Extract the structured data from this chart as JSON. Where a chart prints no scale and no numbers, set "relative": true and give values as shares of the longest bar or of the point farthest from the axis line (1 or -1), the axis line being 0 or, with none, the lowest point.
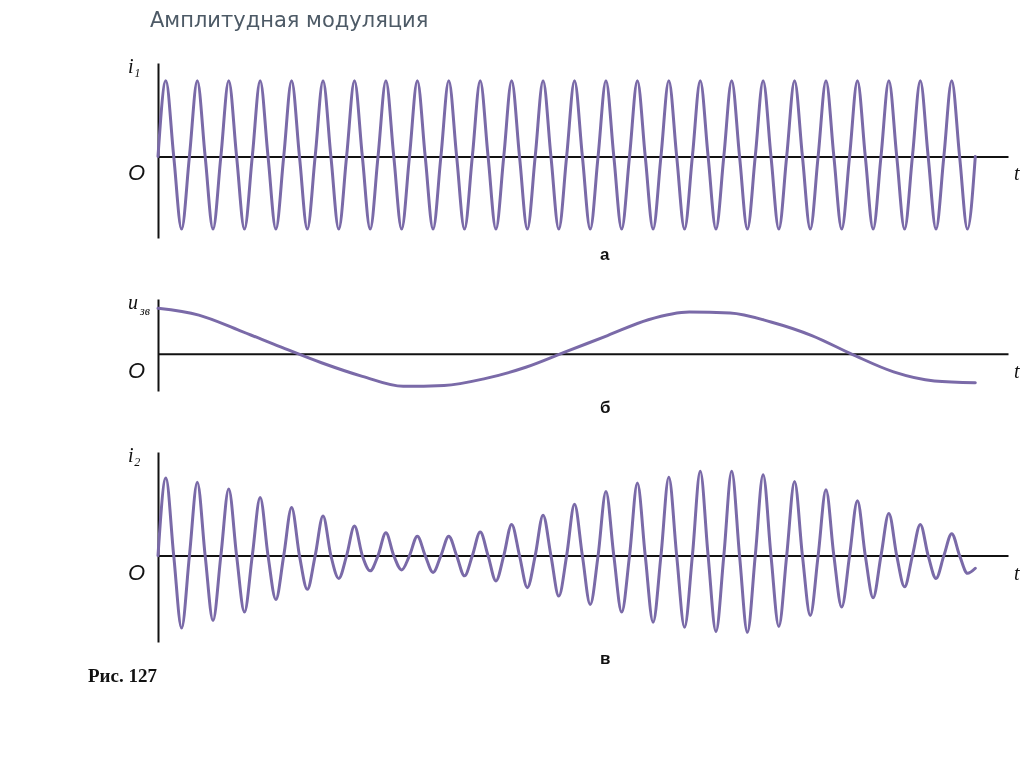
{
  "chart_data": [
    {
      "type": "line",
      "title": "Амплитудная модуляция",
      "relative": true,
      "ylabel": "i₁",
      "xlabel": "t",
      "annotations": [
        "O",
        "а"
      ],
      "categories": [
        null,
        null,
        null,
        null,
        null,
        null,
        null,
        null,
        null,
        null,
        null,
        null,
        null,
        null,
        null,
        null,
        null,
        null,
        null,
        null,
        null,
        null,
        null,
        null,
        null,
        null,
        null,
        null,
        null,
        null,
        null,
        null,
        null,
        null,
        null,
        null,
        null,
        null,
        null,
        null,
        null,
        null,
        null,
        null,
        null,
        null,
        null,
        null,
        null,
        null,
        null,
        null,
        null,
        null,
        null,
        null,
        null,
        null,
        null,
        null,
        null,
        null,
        null,
        null,
        null,
        null,
        null,
        null,
        null,
        null,
        null,
        null,
        null,
        null,
        null,
        null,
        null,
        null,
        null,
        null,
        null,
        null,
        null,
        null,
        null,
        null,
        null,
        null,
        null,
        null,
        null,
        null,
        null,
        null,
        null,
        null,
        null,
        null,
        null,
        null,
        null,
        null,
        null,
        null,
        null
      ],
      "series": [
        {
          "color": "#7a6aa8",
          "values": [
            0,
            1,
            0,
            -0.96,
            0,
            1,
            0,
            -0.96,
            0,
            1,
            0,
            -0.96,
            0,
            1,
            0,
            -0.96,
            0,
            1,
            0,
            -0.96,
            0,
            1,
            0,
            -0.96,
            0,
            1,
            0,
            -0.96,
            0,
            1,
            0,
            -0.96,
            0,
            1,
            0,
            -0.96,
            0,
            1,
            0,
            -0.96,
            0,
            1,
            0,
            -0.96,
            0,
            1,
            0,
            -0.96,
            0,
            1,
            0,
            -0.96,
            0,
            1,
            0,
            -0.96,
            0,
            1,
            0,
            -0.96,
            0,
            1,
            0,
            -0.96,
            0,
            1,
            0,
            -0.96,
            0,
            1,
            0,
            -0.96,
            0,
            1,
            0,
            -0.96,
            0,
            1,
            0,
            -0.96,
            0,
            1,
            0,
            -0.96,
            0,
            1,
            0,
            -0.96,
            0,
            1,
            0,
            -0.96,
            0,
            1,
            0,
            -0.96,
            0,
            1,
            0,
            -0.96,
            0,
            1,
            0,
            -0.96,
            0
          ]
        }
      ]
    },
    {
      "type": "line",
      "relative": true,
      "ylabel": "u$_{зв}$",
      "xlabel": "t",
      "annotations": [
        "O",
        "б"
      ],
      "categories": [
        null,
        null,
        null,
        null,
        null,
        null,
        null,
        null,
        null,
        null,
        null,
        null,
        null,
        null,
        null,
        null,
        null,
        null,
        null,
        null,
        null
      ],
      "series": [
        {
          "color": "#7a6aa8",
          "values": [
            1,
            0.85,
            0.51,
            0.15,
            -0.2,
            -0.5,
            -0.72,
            -0.7,
            -0.55,
            -0.3,
            0.05,
            0.4,
            0.75,
            0.92,
            0.9,
            0.7,
            0.4,
            -0.02,
            -0.4,
            -0.6,
            -0.64
          ]
        }
      ]
    },
    {
      "type": "line",
      "relative": true,
      "ylabel": "i₂",
      "xlabel": "t",
      "annotations": [
        "O",
        "в",
        "Рис. 127"
      ],
      "categories": [
        null,
        null,
        null,
        null,
        null,
        null,
        null,
        null,
        null,
        null,
        null,
        null,
        null,
        null,
        null,
        null,
        null,
        null,
        null,
        null,
        null,
        null,
        null,
        null,
        null,
        null,
        null,
        null,
        null,
        null,
        null,
        null,
        null,
        null,
        null,
        null,
        null,
        null,
        null,
        null,
        null,
        null,
        null,
        null,
        null,
        null,
        null,
        null,
        null,
        null,
        null,
        null,
        null,
        null,
        null,
        null,
        null,
        null,
        null,
        null,
        null,
        null,
        null,
        null,
        null,
        null,
        null,
        null,
        null,
        null,
        null,
        null,
        null,
        null,
        null,
        null,
        null,
        null,
        null,
        null,
        null,
        null,
        null,
        null,
        null,
        null,
        null,
        null,
        null,
        null,
        null,
        null,
        null,
        null,
        null,
        null,
        null,
        null,
        null,
        null,
        null,
        null,
        null,
        null,
        null
      ],
      "series": [
        {
          "color": "#7a6aa8",
          "values": [
            0,
            0.92,
            0,
            -0.86,
            0,
            0.87,
            0,
            -0.77,
            0,
            0.79,
            0,
            -0.67,
            0,
            0.69,
            0,
            -0.52,
            0,
            0.57,
            0,
            -0.4,
            0,
            0.47,
            0,
            -0.27,
            0,
            0.35,
            0,
            -0.18,
            0,
            0.27,
            0,
            -0.17,
            0,
            0.23,
            0,
            -0.2,
            0,
            0.23,
            0,
            -0.24,
            0,
            0.28,
            0,
            -0.3,
            0,
            0.37,
            0,
            -0.38,
            0,
            0.48,
            0,
            -0.48,
            0,
            0.61,
            0,
            -0.58,
            0,
            0.76,
            0,
            -0.67,
            0,
            0.86,
            0,
            -0.79,
            0,
            0.93,
            0,
            -0.85,
            0,
            1,
            0,
            -0.9,
            0,
            1,
            0,
            -0.91,
            0,
            0.96,
            0,
            -0.84,
            0,
            0.88,
            0,
            -0.71,
            0,
            0.78,
            0,
            -0.61,
            0,
            0.65,
            0,
            -0.5,
            0,
            0.5,
            0,
            -0.37,
            0,
            0.37,
            0,
            -0.27,
            0,
            0.26,
            0,
            -0.21,
            -0.15
          ]
        }
      ]
    }
  ]
}
